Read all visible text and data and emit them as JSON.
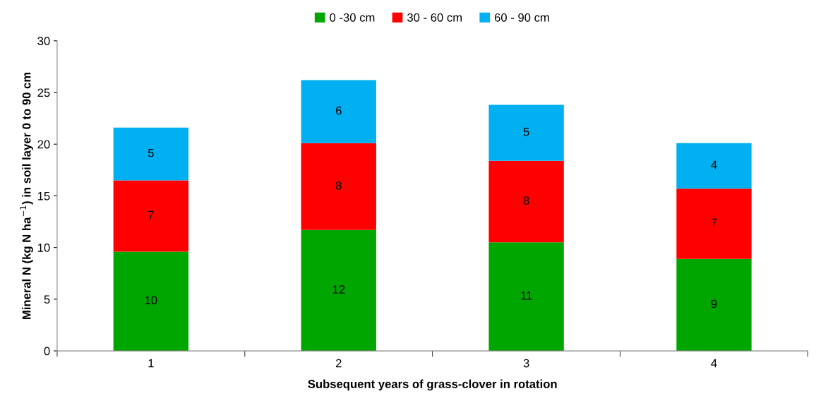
{
  "chart_data": {
    "type": "bar",
    "stacked": true,
    "xlabel": "Subsequent years of grass-clover in rotation",
    "ylabel": "Mineral N (kg N ha$^{−1}$) in soil layer 0 to 90 cm",
    "categories": [
      "1",
      "2",
      "3",
      "4"
    ],
    "series": [
      {
        "name": "0 -30 cm",
        "color": "#00a600",
        "values": [
          9.6,
          11.7,
          10.5,
          8.9
        ],
        "value_labels": [
          "10",
          "12",
          "11",
          "9"
        ]
      },
      {
        "name": "30 - 60 cm",
        "color": "#ff0000",
        "values": [
          6.9,
          8.4,
          7.9,
          6.8
        ],
        "value_labels": [
          "7",
          "8",
          "8",
          "7"
        ]
      },
      {
        "name": "60 - 90 cm",
        "color": "#00b0f0",
        "values": [
          5.1,
          6.1,
          5.4,
          4.4
        ],
        "value_labels": [
          "5",
          "6",
          "5",
          "4"
        ]
      }
    ],
    "ylim": [
      0,
      30
    ],
    "yticks": [
      0,
      5,
      10,
      15,
      20,
      25,
      30
    ],
    "grid": false,
    "legend": "top"
  }
}
